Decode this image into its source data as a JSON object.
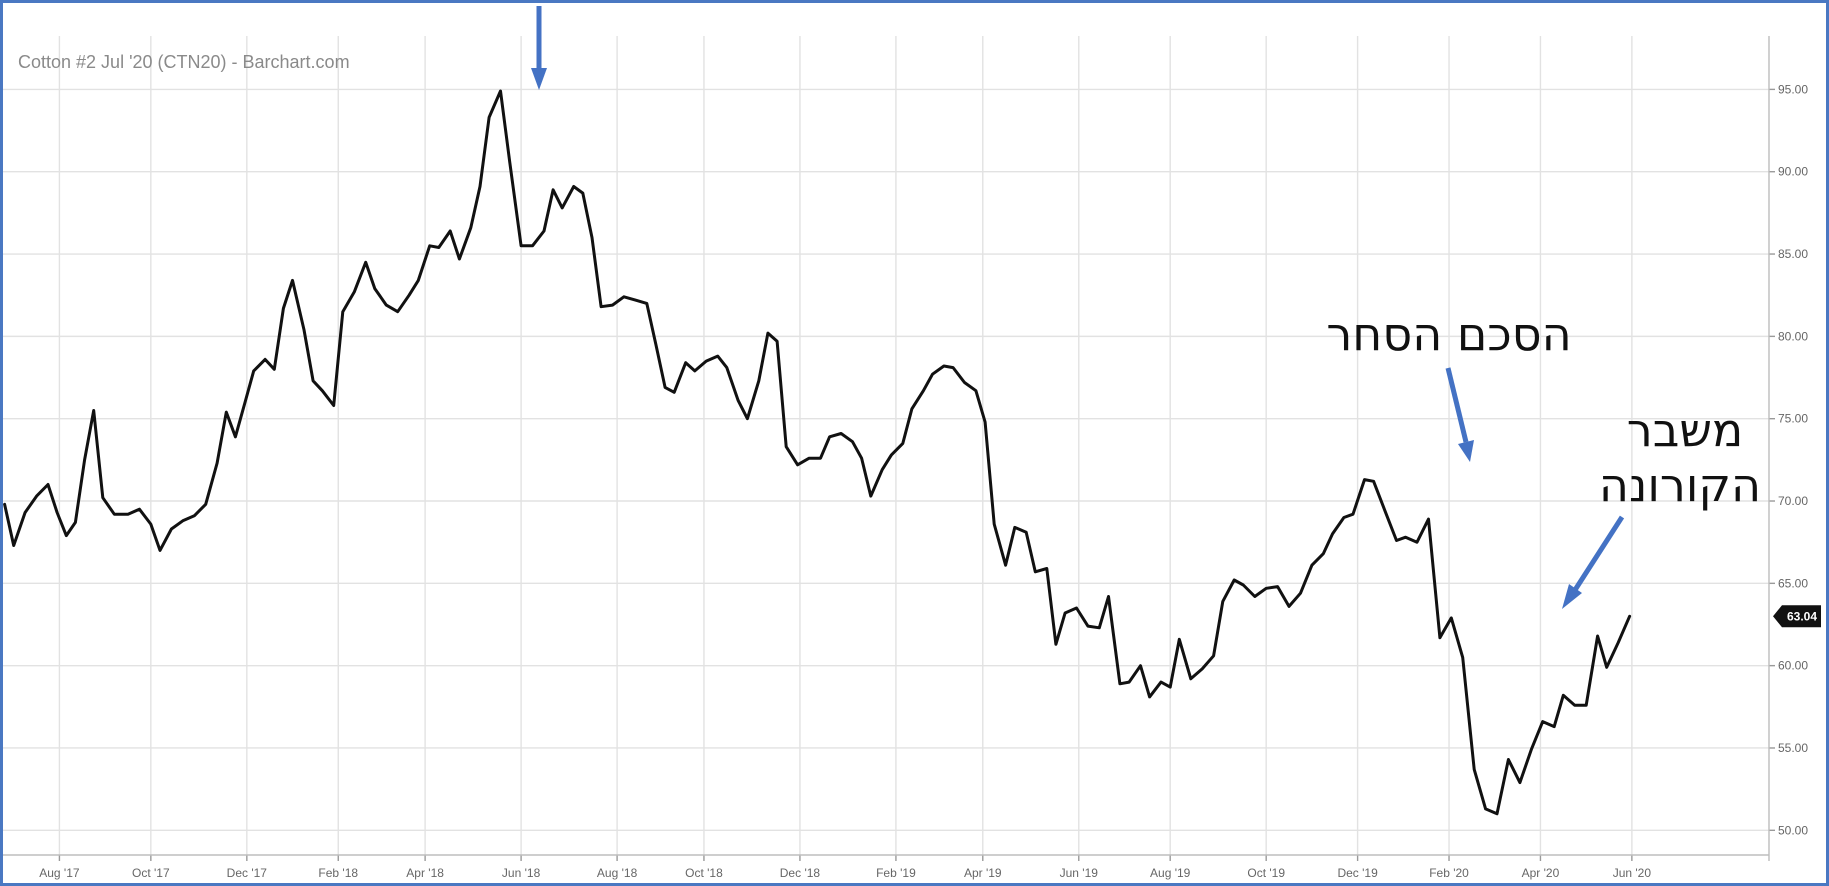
{
  "chart_data": {
    "type": "line",
    "title": "Cotton #2 Jul '20 (CTN20) - Barchart.com",
    "xlabel": "",
    "ylabel": "",
    "ylim": [
      48.5,
      98
    ],
    "xlim": [
      -0.1,
      38.6
    ],
    "y_ticks": [
      50,
      55,
      60,
      65,
      70,
      75,
      80,
      85,
      90,
      95
    ],
    "y_tick_labels": [
      "50.00",
      "55.00",
      "60.00",
      "65.00",
      "70.00",
      "75.00",
      "80.00",
      "85.00",
      "90.00",
      "95.00"
    ],
    "x_ticks": [
      {
        "label": "Aug '17",
        "x": 1.2
      },
      {
        "label": "Oct '17",
        "x": 3.2
      },
      {
        "label": "Dec '17",
        "x": 5.3
      },
      {
        "label": "Feb '18",
        "x": 7.3
      },
      {
        "label": "Apr '18",
        "x": 9.2
      },
      {
        "label": "Jun '18",
        "x": 11.3
      },
      {
        "label": "Aug '18",
        "x": 13.4
      },
      {
        "label": "Oct '18",
        "x": 15.3
      },
      {
        "label": "Dec '18",
        "x": 17.4
      },
      {
        "label": "Feb '19",
        "x": 19.5
      },
      {
        "label": "Apr '19",
        "x": 21.4
      },
      {
        "label": "Jun '19",
        "x": 23.5
      },
      {
        "label": "Aug '19",
        "x": 25.5
      },
      {
        "label": "Oct '19",
        "x": 27.6
      },
      {
        "label": "Dec '19",
        "x": 29.6
      },
      {
        "label": "Feb '20",
        "x": 31.6
      },
      {
        "label": "Apr '20",
        "x": 33.6
      },
      {
        "label": "Jun '20",
        "x": 35.6
      }
    ],
    "grid": true,
    "last_value_label": "63.04",
    "series": [
      {
        "name": "",
        "points": [
          [
            0.0,
            69.8
          ],
          [
            0.2,
            67.3
          ],
          [
            0.45,
            69.3
          ],
          [
            0.7,
            70.3
          ],
          [
            0.95,
            71.0
          ],
          [
            1.15,
            69.3
          ],
          [
            1.35,
            67.9
          ],
          [
            1.55,
            68.7
          ],
          [
            1.75,
            72.5
          ],
          [
            1.95,
            75.5
          ],
          [
            2.15,
            70.2
          ],
          [
            2.4,
            69.2
          ],
          [
            2.7,
            69.2
          ],
          [
            2.95,
            69.5
          ],
          [
            3.2,
            68.6
          ],
          [
            3.4,
            67.0
          ],
          [
            3.65,
            68.3
          ],
          [
            3.9,
            68.8
          ],
          [
            4.15,
            69.1
          ],
          [
            4.4,
            69.8
          ],
          [
            4.65,
            72.3
          ],
          [
            4.85,
            75.4
          ],
          [
            5.05,
            73.9
          ],
          [
            5.25,
            75.9
          ],
          [
            5.45,
            77.9
          ],
          [
            5.7,
            78.6
          ],
          [
            5.9,
            78.0
          ],
          [
            6.1,
            81.7
          ],
          [
            6.3,
            83.4
          ],
          [
            6.55,
            80.4
          ],
          [
            6.75,
            77.3
          ],
          [
            6.95,
            76.7
          ],
          [
            7.2,
            75.8
          ],
          [
            7.4,
            81.5
          ],
          [
            7.65,
            82.7
          ],
          [
            7.9,
            84.5
          ],
          [
            8.1,
            82.9
          ],
          [
            8.35,
            81.9
          ],
          [
            8.6,
            81.5
          ],
          [
            8.85,
            82.5
          ],
          [
            9.05,
            83.4
          ],
          [
            9.3,
            85.5
          ],
          [
            9.5,
            85.4
          ],
          [
            9.75,
            86.4
          ],
          [
            9.95,
            84.7
          ],
          [
            10.2,
            86.6
          ],
          [
            10.4,
            89.1
          ],
          [
            10.6,
            93.3
          ],
          [
            10.85,
            94.9
          ],
          [
            11.05,
            90.6
          ],
          [
            11.3,
            85.5
          ],
          [
            11.55,
            85.5
          ],
          [
            11.8,
            86.4
          ],
          [
            12.0,
            88.9
          ],
          [
            12.2,
            87.8
          ],
          [
            12.45,
            89.1
          ],
          [
            12.65,
            88.7
          ],
          [
            12.85,
            86.0
          ],
          [
            13.05,
            81.8
          ],
          [
            13.3,
            81.9
          ],
          [
            13.55,
            82.4
          ],
          [
            13.8,
            82.2
          ],
          [
            14.05,
            82.0
          ],
          [
            14.25,
            79.5
          ],
          [
            14.45,
            76.9
          ],
          [
            14.65,
            76.6
          ],
          [
            14.9,
            78.4
          ],
          [
            15.1,
            77.9
          ],
          [
            15.35,
            78.5
          ],
          [
            15.6,
            78.8
          ],
          [
            15.8,
            78.1
          ],
          [
            16.05,
            76.1
          ],
          [
            16.25,
            75.0
          ],
          [
            16.5,
            77.3
          ],
          [
            16.7,
            80.2
          ],
          [
            16.9,
            79.7
          ],
          [
            17.1,
            73.3
          ],
          [
            17.35,
            72.2
          ],
          [
            17.6,
            72.6
          ],
          [
            17.85,
            72.6
          ],
          [
            18.05,
            73.9
          ],
          [
            18.3,
            74.1
          ],
          [
            18.55,
            73.6
          ],
          [
            18.75,
            72.6
          ],
          [
            18.95,
            70.3
          ],
          [
            19.2,
            71.9
          ],
          [
            19.4,
            72.8
          ],
          [
            19.65,
            73.5
          ],
          [
            19.85,
            75.6
          ],
          [
            20.1,
            76.7
          ],
          [
            20.3,
            77.7
          ],
          [
            20.55,
            78.2
          ],
          [
            20.75,
            78.1
          ],
          [
            21.0,
            77.2
          ],
          [
            21.25,
            76.7
          ],
          [
            21.45,
            74.8
          ],
          [
            21.65,
            68.6
          ],
          [
            21.9,
            66.1
          ],
          [
            22.1,
            68.4
          ],
          [
            22.35,
            68.1
          ],
          [
            22.55,
            65.7
          ],
          [
            22.8,
            65.9
          ],
          [
            23.0,
            61.3
          ],
          [
            23.2,
            63.2
          ],
          [
            23.45,
            63.5
          ],
          [
            23.7,
            62.4
          ],
          [
            23.95,
            62.3
          ],
          [
            24.15,
            64.2
          ],
          [
            24.4,
            58.9
          ],
          [
            24.6,
            59.0
          ],
          [
            24.85,
            60.0
          ],
          [
            25.05,
            58.1
          ],
          [
            25.3,
            59.0
          ],
          [
            25.5,
            58.7
          ],
          [
            25.7,
            61.6
          ],
          [
            25.95,
            59.2
          ],
          [
            26.2,
            59.8
          ],
          [
            26.45,
            60.6
          ],
          [
            26.65,
            63.9
          ],
          [
            26.9,
            65.2
          ],
          [
            27.1,
            64.9
          ],
          [
            27.35,
            64.2
          ],
          [
            27.6,
            64.7
          ],
          [
            27.85,
            64.8
          ],
          [
            28.1,
            63.6
          ],
          [
            28.35,
            64.4
          ],
          [
            28.6,
            66.1
          ],
          [
            28.85,
            66.8
          ],
          [
            29.05,
            68.0
          ],
          [
            29.3,
            69.0
          ],
          [
            29.5,
            69.2
          ],
          [
            29.75,
            71.3
          ],
          [
            29.95,
            71.2
          ],
          [
            30.2,
            69.4
          ],
          [
            30.45,
            67.6
          ],
          [
            30.65,
            67.8
          ],
          [
            30.9,
            67.5
          ],
          [
            31.15,
            68.9
          ],
          [
            31.4,
            61.7
          ],
          [
            31.65,
            62.9
          ],
          [
            31.9,
            60.5
          ],
          [
            32.15,
            53.7
          ],
          [
            32.4,
            51.3
          ],
          [
            32.65,
            51.0
          ],
          [
            32.9,
            54.3
          ],
          [
            33.15,
            52.9
          ],
          [
            33.4,
            54.9
          ],
          [
            33.65,
            56.6
          ],
          [
            33.9,
            56.3
          ],
          [
            34.1,
            58.2
          ],
          [
            34.35,
            57.6
          ],
          [
            34.6,
            57.6
          ],
          [
            34.85,
            61.8
          ],
          [
            35.05,
            59.9
          ],
          [
            35.3,
            61.4
          ],
          [
            35.55,
            63.0
          ]
        ]
      }
    ],
    "annotations": [
      {
        "text": "הסכם הסחר"
      },
      {
        "text": "משבר"
      },
      {
        "text": "הקורונה"
      }
    ]
  }
}
